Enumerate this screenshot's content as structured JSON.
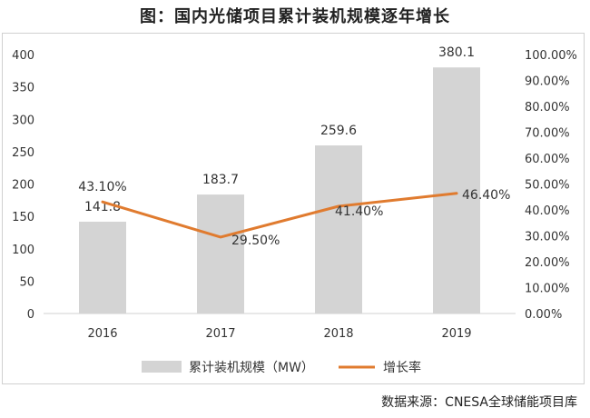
{
  "page_title": "图：国内光储项目累计装机规模逐年增长",
  "source_note": "数据来源：CNESA全球储能项目库",
  "chart_data": {
    "type": "bar",
    "categories": [
      "2016",
      "2017",
      "2018",
      "2019"
    ],
    "series": [
      {
        "name": "累计装机规模（MW）",
        "type": "bar",
        "axis": "left",
        "values": [
          141.8,
          183.7,
          259.6,
          380.1
        ],
        "labels": [
          "141.8",
          "183.7",
          "259.6",
          "380.1"
        ],
        "color": "#d4d4d4"
      },
      {
        "name": "增长率",
        "type": "line",
        "axis": "right",
        "values": [
          43.1,
          29.5,
          41.4,
          46.4
        ],
        "labels": [
          "43.10%",
          "29.50%",
          "41.40%",
          "46.40%"
        ],
        "color": "#e07b2f"
      }
    ],
    "y_left": {
      "min": 0,
      "max": 400,
      "ticks": [
        "0",
        "50",
        "100",
        "150",
        "200",
        "250",
        "300",
        "350",
        "400"
      ]
    },
    "y_right": {
      "min": 0,
      "max": 100,
      "ticks": [
        "0.00%",
        "10.00%",
        "20.00%",
        "30.00%",
        "40.00%",
        "50.00%",
        "60.00%",
        "70.00%",
        "80.00%",
        "90.00%",
        "100.00%"
      ]
    },
    "grid": false,
    "legend_position": "bottom"
  }
}
